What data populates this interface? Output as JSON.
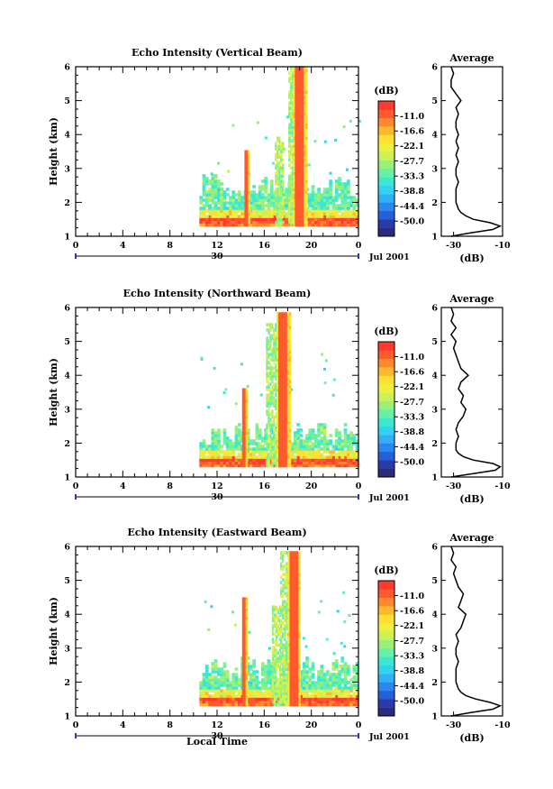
{
  "figure": {
    "xlabel": "Local Time",
    "date_label": "Jul 2001",
    "day_label": "30",
    "colorbar_unit": "(dB)",
    "profile_xlabel": "(dB)",
    "profile_title": "Average"
  },
  "colors": {
    "scale": [
      "#2b2b7a",
      "#2a3ba8",
      "#2560d8",
      "#2a86f0",
      "#33b0f5",
      "#33d3f0",
      "#3ee8d0",
      "#66f0a8",
      "#99f07a",
      "#ccf055",
      "#eef040",
      "#ffe033",
      "#ffb82e",
      "#ff8a2e",
      "#ff5a2e",
      "#ff3a2e"
    ],
    "peak": "#ff3a2e"
  },
  "chart_data": [
    {
      "type": "heatmap",
      "title": "Echo Intensity (Vertical Beam)",
      "ylabel": "Height (km)",
      "xlim": [
        0,
        24
      ],
      "ylim": [
        1,
        6
      ],
      "xticks": [
        "0",
        "4",
        "8",
        "12",
        "16",
        "20",
        "0"
      ],
      "yticks": [
        "1",
        "2",
        "3",
        "4",
        "5",
        "6"
      ],
      "colorbar_ticks": [
        "-11.0",
        "-16.6",
        "-22.1",
        "-27.7",
        "-33.3",
        "-38.8",
        "-44.4",
        "-50.0"
      ],
      "colorbar_range": [
        -55.6,
        -5.5
      ],
      "surface_layer": {
        "x_start": 10.5,
        "x_end": 23.8,
        "base_km": 1.3,
        "top_km": 1.55,
        "value_db": -14
      },
      "clutter_layer": {
        "x_start": 10.5,
        "x_end": 24,
        "bottom_km": 1.55,
        "top_km": 2.8,
        "value_db": -32
      },
      "spikes": [
        {
          "x_center": 14.5,
          "width_h": 0.35,
          "top_km": 3.5,
          "value_db": -11
        },
        {
          "x_center": 17.2,
          "width_h": 0.6,
          "top_km": 3.9,
          "value_db": -28
        },
        {
          "x_center": 18.3,
          "width_h": 0.5,
          "top_km": 6.0,
          "value_db": -28
        },
        {
          "x_center": 19.0,
          "width_h": 1.1,
          "top_km": 6.0,
          "value_db": -11
        }
      ],
      "profile": {
        "xlim": [
          -35,
          -10
        ],
        "xticks": [
          "-30",
          "-10"
        ],
        "height_km": [
          1.0,
          1.1,
          1.2,
          1.3,
          1.4,
          1.5,
          1.6,
          1.7,
          1.8,
          2.0,
          2.2,
          2.4,
          2.6,
          2.8,
          3.0,
          3.2,
          3.4,
          3.6,
          3.8,
          4.0,
          4.2,
          4.4,
          4.6,
          4.8,
          5.0,
          5.2,
          5.4,
          5.6,
          5.8,
          6.0
        ],
        "avg_db": [
          -31,
          -23,
          -14,
          -11,
          -15,
          -22,
          -25,
          -27,
          -28,
          -29,
          -29,
          -29,
          -28,
          -29,
          -29,
          -28,
          -29,
          -28,
          -29,
          -28,
          -29,
          -29,
          -28,
          -29,
          -27,
          -29,
          -31,
          -31,
          -30,
          -31
        ]
      }
    },
    {
      "type": "heatmap",
      "title": "Echo Intensity (Northward Beam)",
      "ylabel": "Height (km)",
      "xlim": [
        0,
        24
      ],
      "ylim": [
        1,
        6
      ],
      "xticks": [
        "0",
        "4",
        "8",
        "12",
        "16",
        "20",
        "0"
      ],
      "yticks": [
        "1",
        "2",
        "3",
        "4",
        "5",
        "6"
      ],
      "colorbar_ticks": [
        "-11.0",
        "-16.6",
        "-22.1",
        "-27.7",
        "-33.3",
        "-38.8",
        "-44.4",
        "-50.0"
      ],
      "colorbar_range": [
        -55.6,
        -5.5
      ],
      "surface_layer": {
        "x_start": 10.5,
        "x_end": 23.8,
        "base_km": 1.3,
        "top_km": 1.55,
        "value_db": -14
      },
      "clutter_layer": {
        "x_start": 10.5,
        "x_end": 24,
        "bottom_km": 1.55,
        "top_km": 2.6,
        "value_db": -32
      },
      "spikes": [
        {
          "x_center": 14.3,
          "width_h": 0.35,
          "top_km": 3.6,
          "value_db": -11
        },
        {
          "x_center": 16.6,
          "width_h": 0.9,
          "top_km": 5.5,
          "value_db": -28
        },
        {
          "x_center": 17.6,
          "width_h": 1.1,
          "top_km": 5.8,
          "value_db": -11
        }
      ],
      "profile": {
        "xlim": [
          -35,
          -10
        ],
        "xticks": [
          "-30",
          "-10"
        ],
        "height_km": [
          1.0,
          1.1,
          1.2,
          1.3,
          1.4,
          1.5,
          1.6,
          1.7,
          1.8,
          2.0,
          2.2,
          2.4,
          2.6,
          2.8,
          3.0,
          3.2,
          3.4,
          3.6,
          3.8,
          4.0,
          4.2,
          4.4,
          4.6,
          4.8,
          5.0,
          5.2,
          5.4,
          5.6,
          5.8,
          6.0
        ],
        "avg_db": [
          -31,
          -22,
          -13,
          -11,
          -14,
          -22,
          -26,
          -28,
          -29,
          -29,
          -28,
          -29,
          -28,
          -26,
          -25,
          -27,
          -26,
          -28,
          -27,
          -24,
          -27,
          -28,
          -29,
          -30,
          -29,
          -31,
          -29,
          -31,
          -30,
          -31
        ]
      }
    },
    {
      "type": "heatmap",
      "title": "Echo Intensity (Eastward Beam)",
      "ylabel": "Height (km)",
      "xlim": [
        0,
        24
      ],
      "ylim": [
        1,
        6
      ],
      "xticks": [
        "0",
        "4",
        "8",
        "12",
        "16",
        "20",
        "0"
      ],
      "yticks": [
        "1",
        "2",
        "3",
        "4",
        "5",
        "6"
      ],
      "colorbar_ticks": [
        "-11.0",
        "-16.6",
        "-22.1",
        "-27.7",
        "-33.3",
        "-38.8",
        "-44.4",
        "-50.0"
      ],
      "colorbar_range": [
        -55.6,
        -5.5
      ],
      "surface_layer": {
        "x_start": 10.5,
        "x_end": 23.8,
        "base_km": 1.3,
        "top_km": 1.55,
        "value_db": -14
      },
      "clutter_layer": {
        "x_start": 10.5,
        "x_end": 24,
        "bottom_km": 1.55,
        "top_km": 2.7,
        "value_db": -32
      },
      "spikes": [
        {
          "x_center": 14.3,
          "width_h": 0.35,
          "top_km": 4.5,
          "value_db": -11
        },
        {
          "x_center": 17.0,
          "width_h": 0.7,
          "top_km": 4.2,
          "value_db": -28
        },
        {
          "x_center": 17.8,
          "width_h": 0.9,
          "top_km": 5.8,
          "value_db": -28
        },
        {
          "x_center": 18.5,
          "width_h": 1.0,
          "top_km": 5.8,
          "value_db": -11
        }
      ],
      "profile": {
        "xlim": [
          -35,
          -10
        ],
        "xticks": [
          "-30",
          "-10"
        ],
        "height_km": [
          1.0,
          1.1,
          1.2,
          1.3,
          1.4,
          1.5,
          1.6,
          1.7,
          1.8,
          2.0,
          2.2,
          2.4,
          2.6,
          2.8,
          3.0,
          3.2,
          3.4,
          3.6,
          3.8,
          4.0,
          4.2,
          4.4,
          4.6,
          4.8,
          5.0,
          5.2,
          5.4,
          5.6,
          5.8,
          6.0
        ],
        "avg_db": [
          -31,
          -23,
          -14,
          -11,
          -15,
          -21,
          -25,
          -27,
          -28,
          -29,
          -29,
          -29,
          -28,
          -29,
          -29,
          -28,
          -29,
          -27,
          -26,
          -25,
          -28,
          -27,
          -26,
          -28,
          -29,
          -30,
          -29,
          -31,
          -30,
          -31
        ]
      }
    }
  ]
}
